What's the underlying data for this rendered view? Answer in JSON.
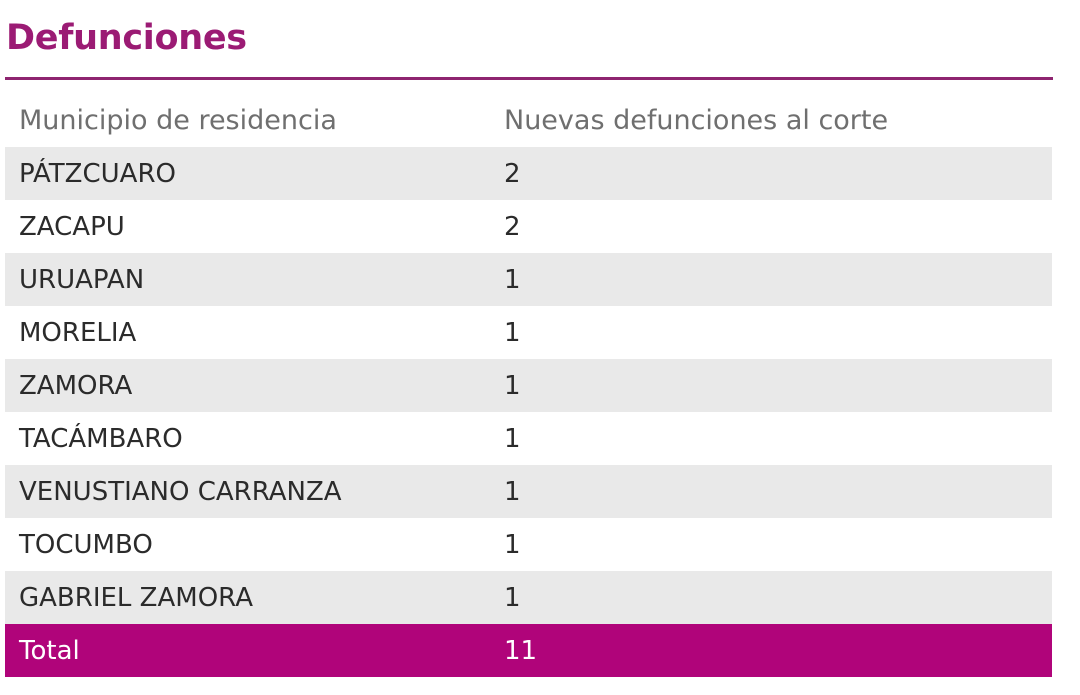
{
  "title": "Defunciones",
  "table": {
    "headers": [
      "Municipio de residencia",
      "Nuevas defunciones al corte"
    ],
    "rows": [
      {
        "municipio": "PÁTZCUARO",
        "defunciones": "2"
      },
      {
        "municipio": "ZACAPU",
        "defunciones": "2"
      },
      {
        "municipio": "URUAPAN",
        "defunciones": "1"
      },
      {
        "municipio": "MORELIA",
        "defunciones": "1"
      },
      {
        "municipio": "ZAMORA",
        "defunciones": "1"
      },
      {
        "municipio": "TACÁMBARO",
        "defunciones": "1"
      },
      {
        "municipio": "VENUSTIANO CARRANZA",
        "defunciones": "1"
      },
      {
        "municipio": "TOCUMBO",
        "defunciones": "1"
      },
      {
        "municipio": "GABRIEL ZAMORA",
        "defunciones": "1"
      }
    ],
    "total": {
      "label": "Total",
      "value": "11"
    }
  },
  "colors": {
    "title": "#9b1b74",
    "rule": "#8e2470",
    "row_shade": "#e9e9e9",
    "total_bg": "#b0047a",
    "total_text": "#ffffff"
  }
}
